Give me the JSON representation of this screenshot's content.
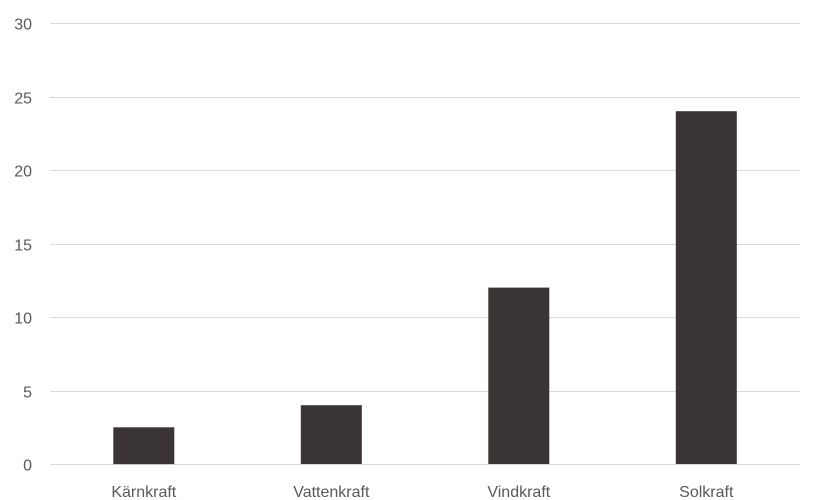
{
  "chart_data": {
    "type": "bar",
    "categories": [
      "Kärnkraft",
      "Vattenkraft",
      "Vindkraft",
      "Solkraft"
    ],
    "values": [
      2.5,
      4,
      12,
      24
    ],
    "title": "",
    "xlabel": "",
    "ylabel": "",
    "ylim": [
      0,
      30
    ],
    "yticks": [
      0,
      5,
      10,
      15,
      20,
      25,
      30
    ],
    "grid": true,
    "legend": "none",
    "bar_color": "#3a3534",
    "grid_color": "#d9d9d9",
    "text_color": "#595959"
  }
}
